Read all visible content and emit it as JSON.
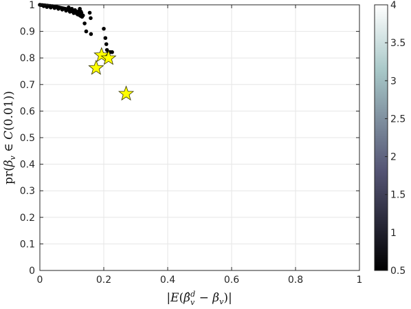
{
  "chart_data": {
    "type": "scatter",
    "title": "",
    "xlabel": "|E(β̂ᵥᵈ − βᵥ)|",
    "ylabel": "pr(βᵥ ∈ C(0.01))",
    "xlim": [
      0,
      1
    ],
    "ylim": [
      0,
      1
    ],
    "x_ticks": [
      "0",
      "0.2",
      "0.4",
      "0.6",
      "0.8",
      "1"
    ],
    "y_ticks": [
      "0",
      "0.1",
      "0.2",
      "0.3",
      "0.4",
      "0.5",
      "0.6",
      "0.7",
      "0.8",
      "0.9",
      "1"
    ],
    "grid": true,
    "colorbar": {
      "colormap": "bone",
      "range": [
        0.5,
        4
      ],
      "ticks": [
        "0.5",
        "1",
        "1.5",
        "2",
        "2.5",
        "3",
        "3.5",
        "4"
      ]
    },
    "series": [
      {
        "marker": "circle",
        "color": "#000000",
        "points": [
          [
            0.0,
            1.0
          ],
          [
            0.004,
            0.999
          ],
          [
            0.008,
            0.999
          ],
          [
            0.012,
            0.998
          ],
          [
            0.016,
            0.998
          ],
          [
            0.02,
            0.997
          ],
          [
            0.024,
            0.997
          ],
          [
            0.028,
            0.996
          ],
          [
            0.032,
            0.996
          ],
          [
            0.036,
            0.995
          ],
          [
            0.04,
            0.995
          ],
          [
            0.044,
            0.994
          ],
          [
            0.048,
            0.993
          ],
          [
            0.052,
            0.992
          ],
          [
            0.056,
            0.991
          ],
          [
            0.06,
            0.99
          ],
          [
            0.064,
            0.989
          ],
          [
            0.068,
            0.988
          ],
          [
            0.072,
            0.987
          ],
          [
            0.076,
            0.986
          ],
          [
            0.08,
            0.985
          ],
          [
            0.084,
            0.983
          ],
          [
            0.088,
            0.982
          ],
          [
            0.092,
            0.98
          ],
          [
            0.096,
            0.978
          ],
          [
            0.1,
            0.976
          ],
          [
            0.104,
            0.974
          ],
          [
            0.108,
            0.972
          ],
          [
            0.112,
            0.97
          ],
          [
            0.116,
            0.967
          ],
          [
            0.12,
            0.964
          ],
          [
            0.124,
            0.961
          ],
          [
            0.128,
            0.958
          ],
          [
            0.012,
            0.995
          ],
          [
            0.022,
            0.992
          ],
          [
            0.034,
            0.99
          ],
          [
            0.046,
            0.988
          ],
          [
            0.058,
            0.985
          ],
          [
            0.07,
            0.982
          ],
          [
            0.082,
            0.978
          ],
          [
            0.094,
            0.974
          ],
          [
            0.106,
            0.969
          ],
          [
            0.118,
            0.964
          ],
          [
            0.09,
            0.99
          ],
          [
            0.1,
            0.985
          ],
          [
            0.11,
            0.98
          ],
          [
            0.12,
            0.975
          ],
          [
            0.125,
            0.985
          ],
          [
            0.13,
            0.97
          ],
          [
            0.135,
            0.96
          ],
          [
            0.128,
            0.975
          ],
          [
            0.132,
            0.955
          ],
          [
            0.156,
            0.97
          ],
          [
            0.159,
            0.95
          ],
          [
            0.2,
            0.91
          ],
          [
            0.14,
            0.93
          ],
          [
            0.145,
            0.9
          ],
          [
            0.16,
            0.89
          ],
          [
            0.205,
            0.875
          ],
          [
            0.208,
            0.852
          ],
          [
            0.21,
            0.83
          ],
          [
            0.215,
            0.822
          ],
          [
            0.22,
            0.822
          ],
          [
            0.226,
            0.822
          ],
          [
            0.212,
            0.815
          ]
        ]
      },
      {
        "marker": "star",
        "color": "#ffff00",
        "points": [
          [
            0.193,
            0.81
          ],
          [
            0.215,
            0.799
          ],
          [
            0.176,
            0.762
          ],
          [
            0.27,
            0.665
          ]
        ]
      }
    ]
  }
}
